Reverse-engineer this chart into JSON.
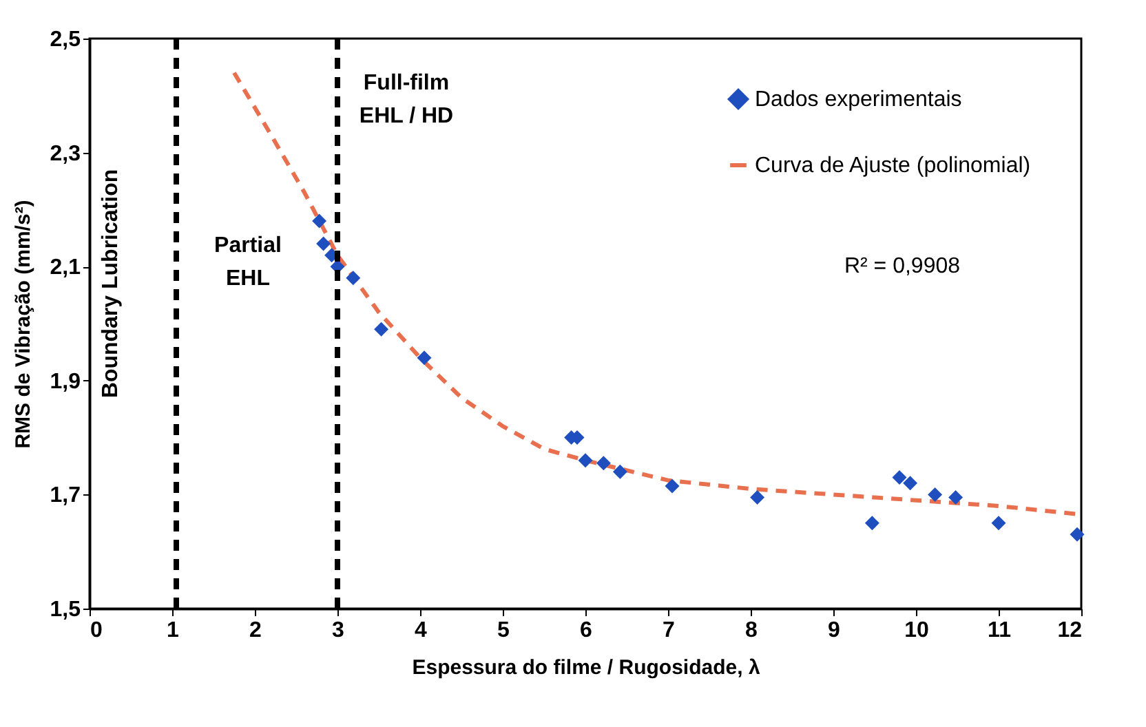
{
  "chart_data": {
    "type": "scatter",
    "xlabel": "Espessura do filme / Rugosidade, λ",
    "ylabel": "RMS de Vibração (mm/s²)",
    "xlim": [
      0,
      12
    ],
    "xticks": [
      0,
      1,
      2,
      3,
      4,
      5,
      6,
      7,
      8,
      9,
      10,
      11,
      12
    ],
    "ylim": [
      1.5,
      2.5
    ],
    "yticks": [
      {
        "value": 1.5,
        "label": "1,5"
      },
      {
        "value": 1.7,
        "label": "1,7"
      },
      {
        "value": 1.9,
        "label": "1,9"
      },
      {
        "value": 2.1,
        "label": "2,1"
      },
      {
        "value": 2.3,
        "label": "2,3"
      },
      {
        "value": 2.5,
        "label": "2,5"
      }
    ],
    "grid": false,
    "legend": "top right",
    "series": [
      {
        "name": "Dados experimentais",
        "marker": "diamond",
        "color": "#1f4fbf",
        "x": [
          2.78,
          2.83,
          2.93,
          3.0,
          3.19,
          3.53,
          4.05,
          5.83,
          5.9,
          6.0,
          6.22,
          6.42,
          7.05,
          8.08,
          9.47,
          9.8,
          9.93,
          10.23,
          10.48,
          11.0,
          11.95
        ],
        "values": [
          2.18,
          2.14,
          2.12,
          2.1,
          2.08,
          1.99,
          1.94,
          1.8,
          1.8,
          1.76,
          1.755,
          1.74,
          1.715,
          1.695,
          1.65,
          1.73,
          1.72,
          1.7,
          1.695,
          1.65,
          1.63
        ]
      },
      {
        "name": "Curva de Ajuste (polinomial)",
        "type": "line",
        "line_style": "dashed",
        "color": "#e8704f",
        "x": [
          1.75,
          2.2,
          2.6,
          3.0,
          3.5,
          4.0,
          4.5,
          5.0,
          5.5,
          6.0,
          7.0,
          8.0,
          9.0,
          10.0,
          11.0,
          12.0
        ],
        "values": [
          2.44,
          2.33,
          2.23,
          2.12,
          2.02,
          1.94,
          1.87,
          1.82,
          1.78,
          1.76,
          1.725,
          1.71,
          1.7,
          1.69,
          1.68,
          1.665
        ]
      }
    ],
    "ref_lines": [
      {
        "axis": "x",
        "value": 1.05,
        "color": "#000000",
        "line_style": "dashed"
      },
      {
        "axis": "x",
        "value": 3.0,
        "color": "#000000",
        "line_style": "dashed"
      }
    ],
    "annotations": [
      "Boundary Lubrication",
      "Partial\nEHL",
      "Full-film\nEHL / HD",
      "R² = 0,9908"
    ]
  }
}
